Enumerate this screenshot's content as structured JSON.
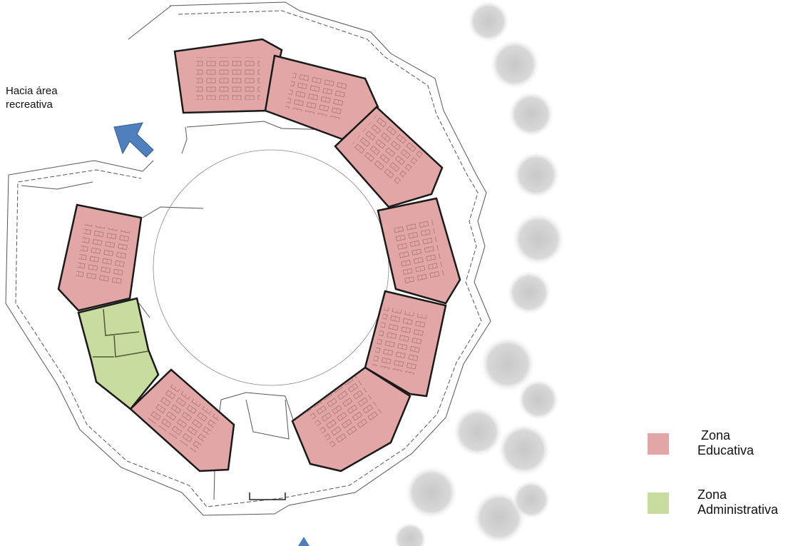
{
  "annotation": {
    "direction_line1": "Hacia área",
    "direction_line2": "recreativa"
  },
  "legend": [
    {
      "line1": " Zona",
      "line2": "Educativa",
      "color": "#e3a6a6"
    },
    {
      "line1": "Zona",
      "line2": "Administrativa",
      "color": "#c9dca0"
    }
  ],
  "colors": {
    "educational": "#e3a6a6",
    "administrative": "#c9dca0",
    "arrow": "#4f7fbd",
    "walls": "#1a1a1a",
    "site_lines": "#555555"
  }
}
